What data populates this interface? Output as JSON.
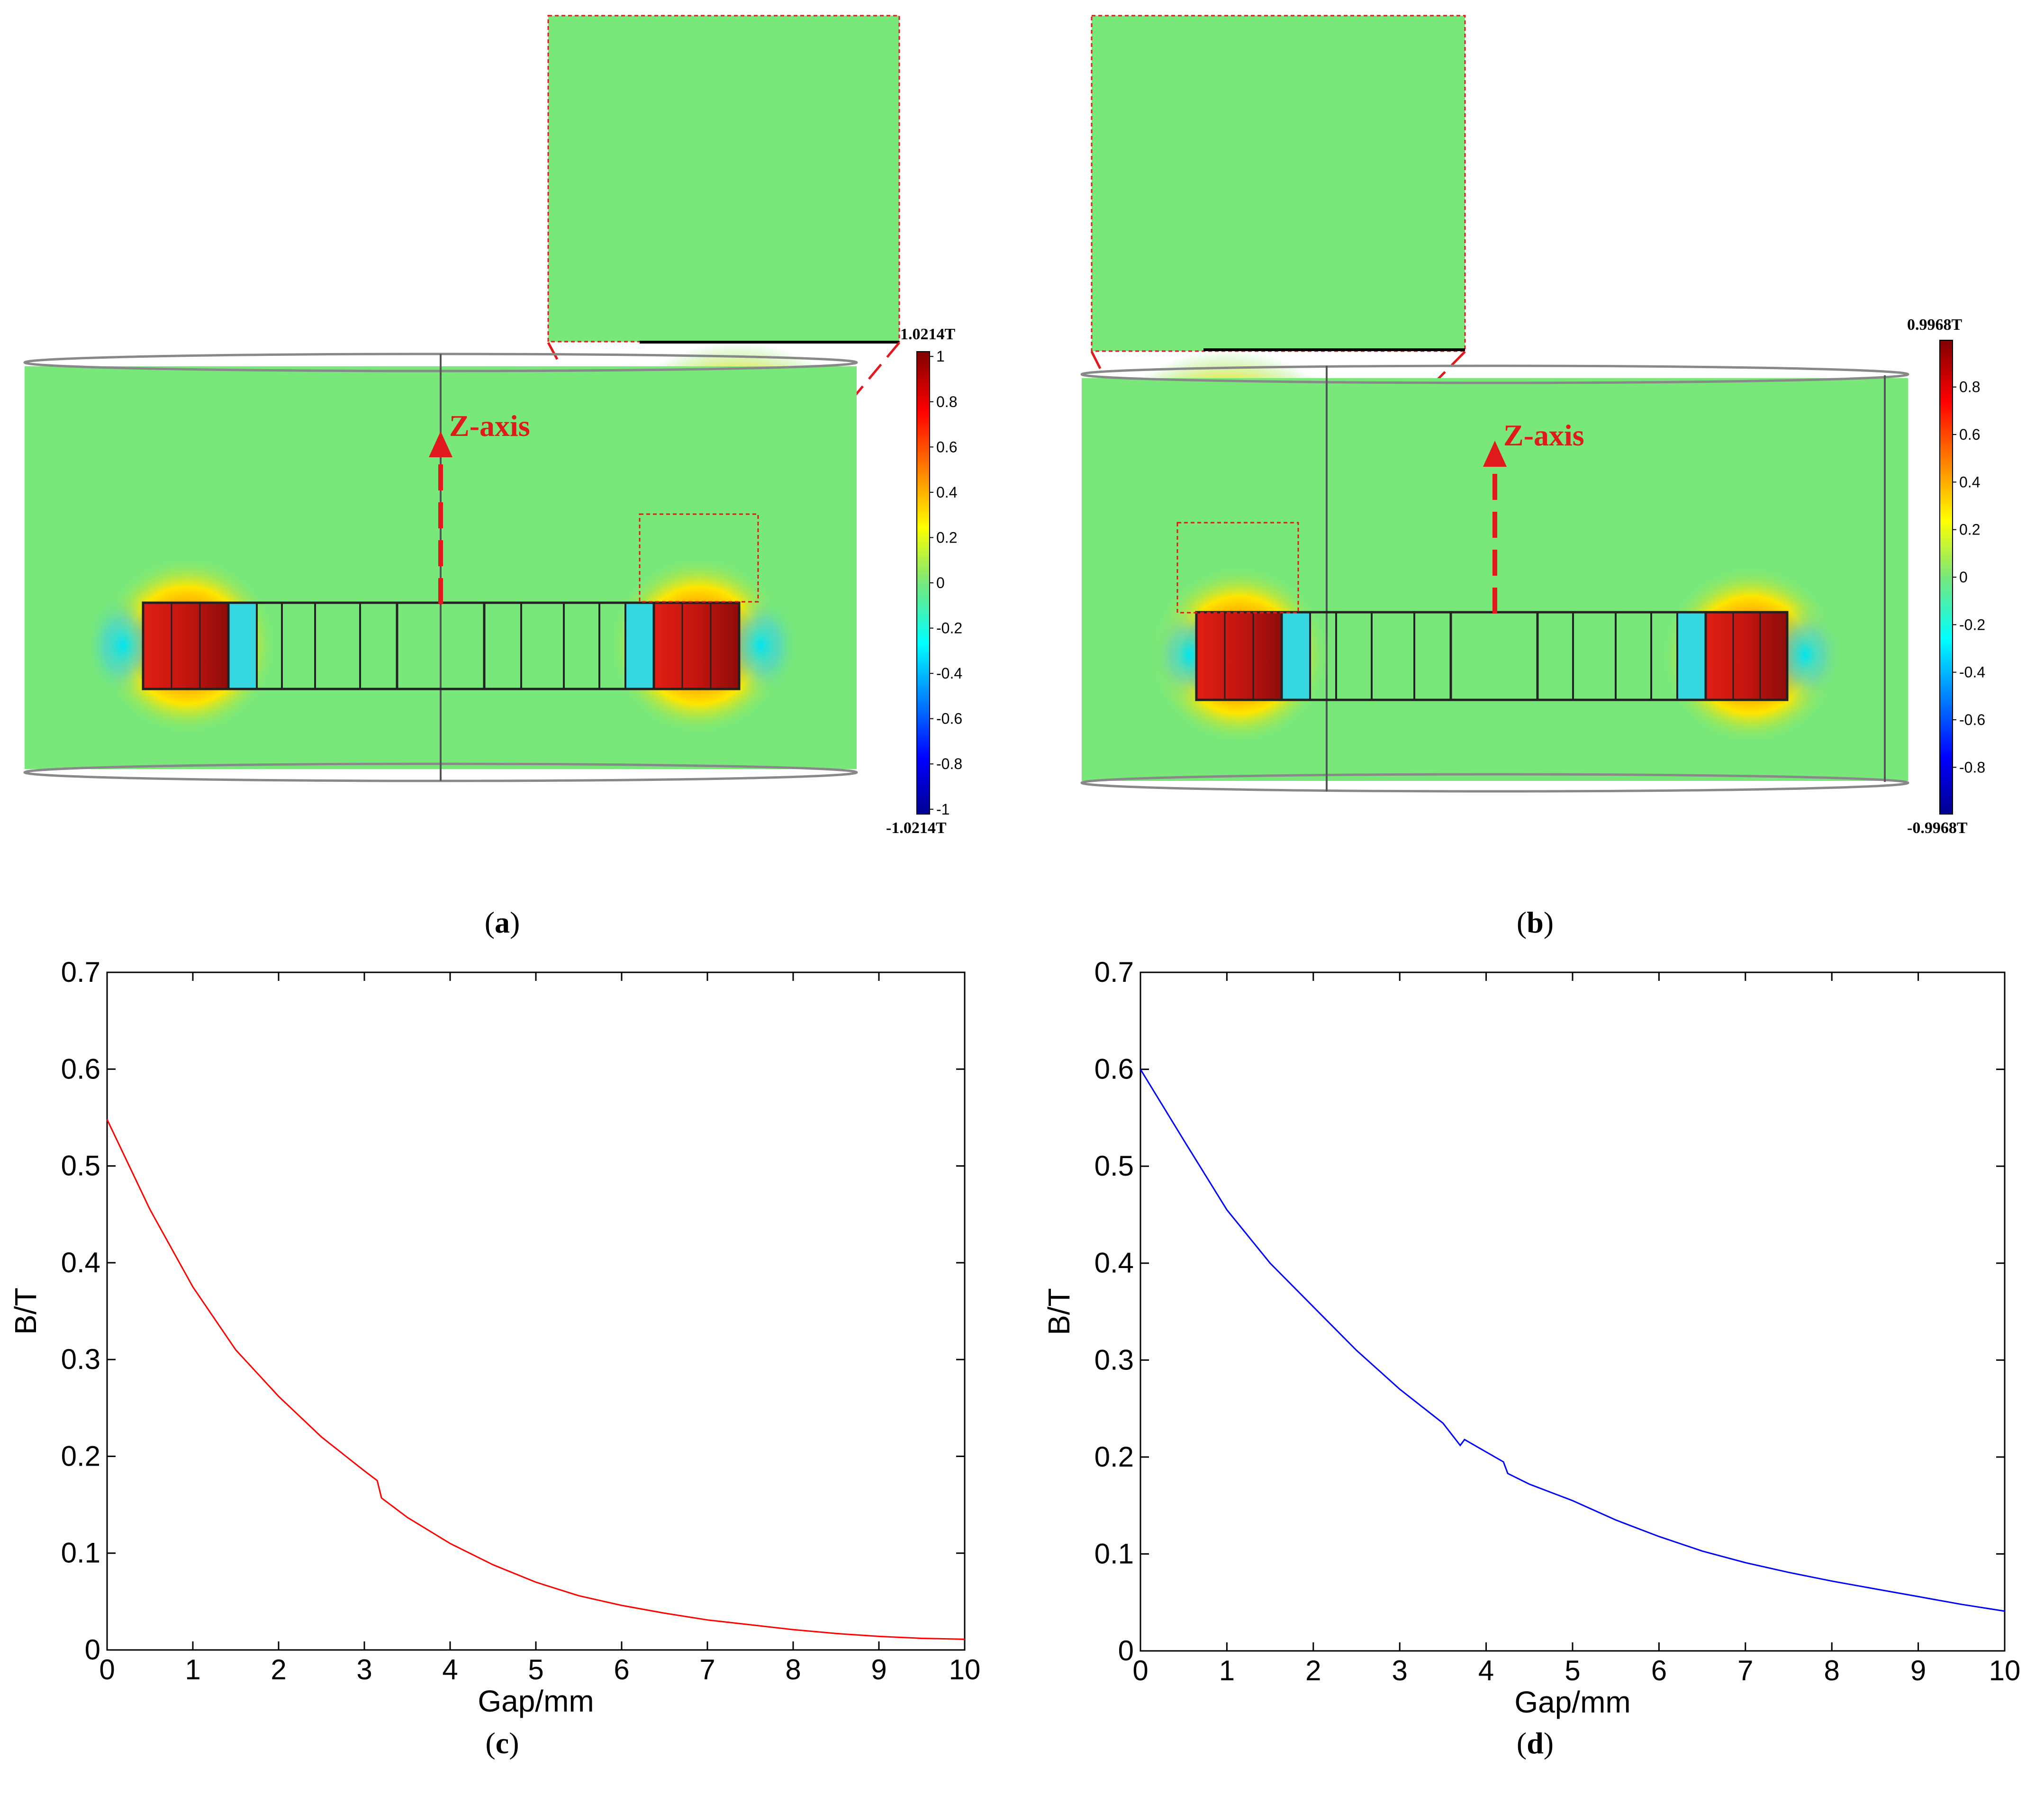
{
  "colors": {
    "field_bg": "#78e87a",
    "magnet": "#d01c14",
    "arrow": "#e0191d",
    "curve_c": "#ff0000",
    "curve_d": "#0000ff"
  },
  "panel_a": {
    "caption_open": "(",
    "caption_letter": "a",
    "caption_close": ")",
    "axis_label": "Z-axis",
    "colorbar": {
      "max_label": "1.0214T",
      "min_label": "-1.0214T",
      "ticks": [
        "1",
        "0.8",
        "0.6",
        "0.4",
        "0.2",
        "0",
        "-0.2",
        "-0.4",
        "-0.6",
        "-0.8",
        "-1"
      ]
    }
  },
  "panel_b": {
    "caption_open": "(",
    "caption_letter": "b",
    "caption_close": ")",
    "axis_label": "Z-axis",
    "colorbar": {
      "max_label": "0.9968T",
      "min_label": "-0.9968T",
      "ticks": [
        "0.8",
        "0.6",
        "0.4",
        "0.2",
        "0",
        "-0.2",
        "-0.4",
        "-0.6",
        "-0.8"
      ]
    }
  },
  "chart_data": [
    {
      "id": "c",
      "type": "line",
      "caption_open": "(",
      "caption_letter": "c",
      "caption_close": ")",
      "xlabel": "Gap/mm",
      "ylabel": "B/T",
      "xlim": [
        0,
        10
      ],
      "ylim": [
        0,
        0.7
      ],
      "xticks": [
        "0",
        "1",
        "2",
        "3",
        "4",
        "5",
        "6",
        "7",
        "8",
        "9",
        "10"
      ],
      "yticks": [
        "0",
        "0.1",
        "0.2",
        "0.3",
        "0.4",
        "0.5",
        "0.6",
        "0.7"
      ],
      "series": [
        {
          "name": "B",
          "color": "#ff0000",
          "x": [
            0,
            0.5,
            1,
            1.5,
            2,
            2.5,
            3,
            3.15,
            3.2,
            3.5,
            4,
            4.5,
            5,
            5.5,
            6,
            6.5,
            7,
            7.5,
            8,
            8.5,
            9,
            9.5,
            10
          ],
          "y": [
            0.548,
            0.455,
            0.375,
            0.31,
            0.262,
            0.22,
            0.185,
            0.175,
            0.157,
            0.137,
            0.11,
            0.088,
            0.07,
            0.056,
            0.046,
            0.038,
            0.031,
            0.026,
            0.021,
            0.017,
            0.014,
            0.012,
            0.011
          ]
        }
      ]
    },
    {
      "id": "d",
      "type": "line",
      "caption_open": "(",
      "caption_letter": "d",
      "caption_close": ")",
      "xlabel": "Gap/mm",
      "ylabel": "B/T",
      "xlim": [
        0,
        10
      ],
      "ylim": [
        0,
        0.7
      ],
      "xticks": [
        "0",
        "1",
        "2",
        "3",
        "4",
        "5",
        "6",
        "7",
        "8",
        "9",
        "10"
      ],
      "yticks": [
        "0",
        "0.1",
        "0.2",
        "0.3",
        "0.4",
        "0.5",
        "0.6",
        "0.7"
      ],
      "series": [
        {
          "name": "B",
          "color": "#0000ff",
          "x": [
            0,
            0.5,
            1,
            1.5,
            2,
            2.5,
            3,
            3.5,
            3.7,
            3.75,
            4.2,
            4.25,
            4.5,
            5,
            5.5,
            6,
            6.5,
            7,
            7.5,
            8,
            8.5,
            9,
            9.5,
            10
          ],
          "y": [
            0.6,
            0.527,
            0.455,
            0.4,
            0.355,
            0.31,
            0.27,
            0.235,
            0.212,
            0.218,
            0.195,
            0.183,
            0.172,
            0.155,
            0.135,
            0.118,
            0.103,
            0.091,
            0.081,
            0.072,
            0.064,
            0.056,
            0.048,
            0.041
          ]
        }
      ]
    }
  ]
}
